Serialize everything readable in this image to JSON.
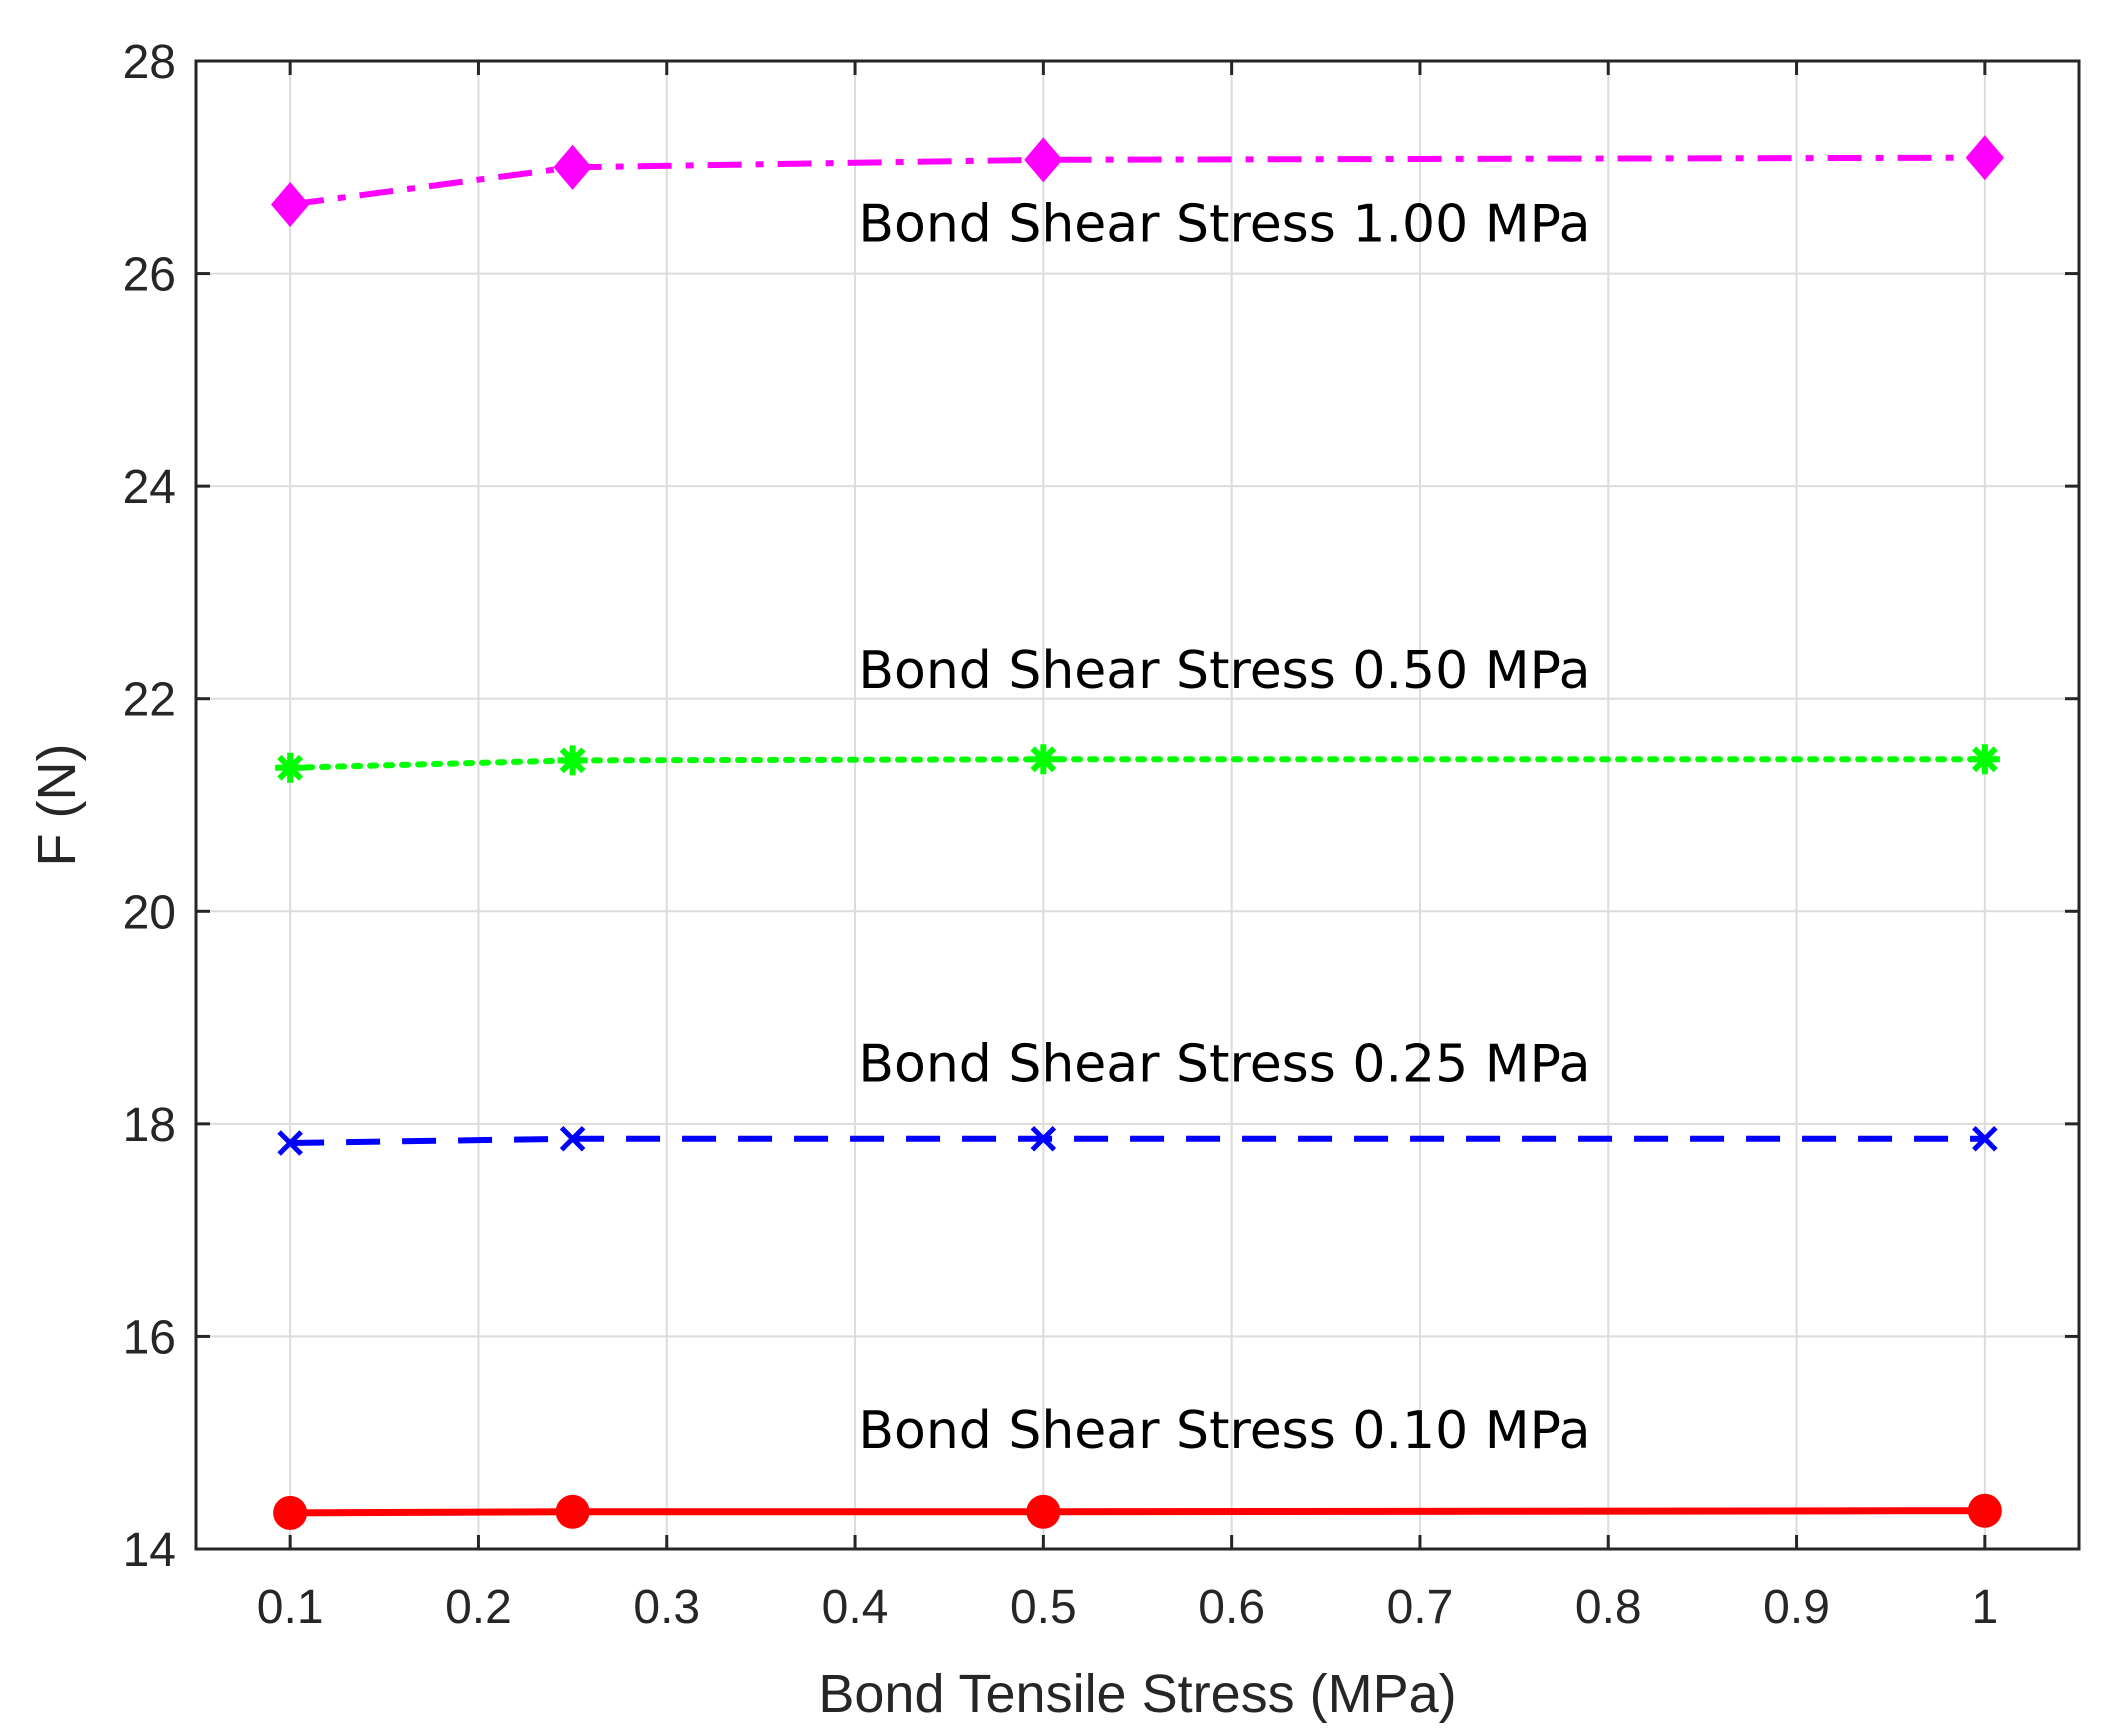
{
  "chart_data": {
    "type": "line",
    "title": "",
    "xlabel": "Bond Tensile Stress (MPa)",
    "ylabel": "F (N)",
    "xlim": [
      0.05,
      1.05
    ],
    "ylim": [
      14,
      28
    ],
    "grid": true,
    "xticks": [
      0.1,
      0.2,
      0.3,
      0.4,
      0.5,
      0.6,
      0.7,
      0.8,
      0.9,
      1
    ],
    "xtick_labels": [
      "0.1",
      "0.2",
      "0.3",
      "0.4",
      "0.5",
      "0.6",
      "0.7",
      "0.8",
      "0.9",
      "1"
    ],
    "yticks": [
      14,
      16,
      18,
      20,
      22,
      24,
      26,
      28
    ],
    "ytick_labels": [
      "14",
      "16",
      "18",
      "20",
      "22",
      "24",
      "26",
      "28"
    ],
    "x": [
      0.1,
      0.25,
      0.5,
      1.0
    ],
    "series": [
      {
        "name": "Bond Shear Stress 1.00 MPa",
        "values": [
          26.65,
          27.0,
          27.07,
          27.09
        ],
        "color": "#ff00ff",
        "line_style": "dashdot",
        "marker": "diamond"
      },
      {
        "name": "Bond Shear Stress 0.50 MPa",
        "values": [
          21.35,
          21.42,
          21.43,
          21.43
        ],
        "color": "#00ff00",
        "line_style": "dotted",
        "marker": "asterisk"
      },
      {
        "name": "Bond Shear Stress 0.25 MPa",
        "values": [
          17.82,
          17.86,
          17.86,
          17.86
        ],
        "color": "#0000ff",
        "line_style": "dashed",
        "marker": "cross"
      },
      {
        "name": "Bond Shear Stress 0.10 MPa",
        "values": [
          14.34,
          14.35,
          14.35,
          14.36
        ],
        "color": "#ff0000",
        "line_style": "solid",
        "marker": "circle"
      }
    ],
    "annotations": [
      {
        "text": "Bond Shear Stress 1.00 MPa",
        "x": 0.5,
        "y": 26.3
      },
      {
        "text": "Bond Shear Stress 0.50 MPa",
        "x": 0.5,
        "y": 22.1
      },
      {
        "text": "Bond Shear Stress 0.25 MPa",
        "x": 0.5,
        "y": 18.4
      },
      {
        "text": "Bond Shear Stress 0.10 MPa",
        "x": 0.5,
        "y": 14.95
      }
    ]
  }
}
